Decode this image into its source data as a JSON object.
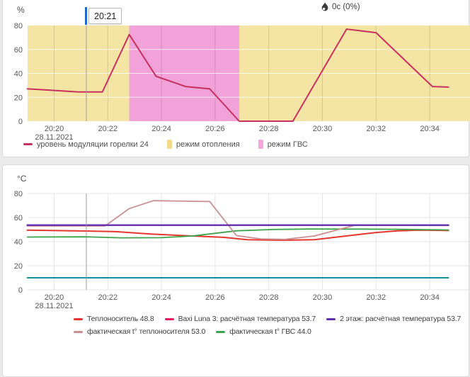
{
  "charts_meta": {
    "top_unit": "%",
    "bottom_unit": "°C",
    "burner_badge_text": "0с (0%)",
    "cursor_time": "20:21",
    "date_label": "28.11.2021"
  },
  "chart_data": [
    {
      "id": "top",
      "type": "line",
      "title": "",
      "unit": "%",
      "badge_text": "0с (0%)",
      "ylim": [
        0,
        80
      ],
      "yticks": [
        0,
        20,
        40,
        60,
        80
      ],
      "x_axis_note": "time 28.11.2021, minutes after 20:00",
      "xticks": [
        {
          "m": 20,
          "label": "20:20",
          "sub": "28.11.2021"
        },
        {
          "m": 22,
          "label": "20:22"
        },
        {
          "m": 24,
          "label": "20:24"
        },
        {
          "m": 26,
          "label": "20:26"
        },
        {
          "m": 28,
          "label": "20:28"
        },
        {
          "m": 30,
          "label": "20:30"
        },
        {
          "m": 32,
          "label": "20:32"
        },
        {
          "m": 34,
          "label": "20:34"
        }
      ],
      "bands": [
        {
          "label": "режим отопления",
          "color": "#f4e5a4",
          "from": 18.9,
          "to": 35.6
        },
        {
          "label": "режим ГВС",
          "color": "#f0a2d9",
          "from": 22.8,
          "to": 26.9
        }
      ],
      "cursor_m": 21.2,
      "cursor": {
        "label": "20:21"
      },
      "series": [
        {
          "sid": "modulation",
          "name": "уровень модуляции горелки 24",
          "color": "#c8315f",
          "width": 2,
          "points": [
            [
              19.0,
              27
            ],
            [
              19.8,
              26
            ],
            [
              20.9,
              24.5
            ],
            [
              21.8,
              24.5
            ],
            [
              22.8,
              72.5
            ],
            [
              23.8,
              37.5
            ],
            [
              24.9,
              29
            ],
            [
              25.8,
              27
            ],
            [
              26.9,
              0
            ],
            [
              28.9,
              0
            ],
            [
              30.9,
              77
            ],
            [
              32.0,
              74
            ],
            [
              34.1,
              29
            ],
            [
              34.7,
              28.5
            ]
          ]
        }
      ],
      "legend_rows": [
        [
          {
            "swatch": "line",
            "color": "#c8315f",
            "label": "уровень модуляции горелки 24"
          },
          {
            "swatch": "box",
            "color": "#f0db8d",
            "label": "режим отопления"
          },
          {
            "swatch": "box",
            "color": "#f2a6da",
            "label": "режим ГВС"
          }
        ]
      ]
    },
    {
      "id": "bottom",
      "type": "line",
      "title": "",
      "unit": "°C",
      "ylim": [
        0,
        80
      ],
      "yticks": [
        0,
        20,
        40,
        60,
        80
      ],
      "x_axis_note": "time 28.11.2021, minutes after 20:00",
      "xticks": [
        {
          "m": 20,
          "label": "20:20",
          "sub": "28.11.2021"
        },
        {
          "m": 22,
          "label": "20:22"
        },
        {
          "m": 24,
          "label": "20:24"
        },
        {
          "m": 26,
          "label": "20:26"
        },
        {
          "m": 28,
          "label": "20:28"
        },
        {
          "m": 30,
          "label": "20:30"
        },
        {
          "m": 32,
          "label": "20:32"
        },
        {
          "m": 34,
          "label": "20:34"
        }
      ],
      "bands": [],
      "cursor_m": 21.2,
      "series": [
        {
          "sid": "baxi-calc",
          "name": "Baxi Luna 3: расчётная температура 53.7",
          "color": "#e8175d",
          "width": 2,
          "points": [
            [
              19.0,
              53.7
            ],
            [
              34.7,
              53.7
            ]
          ]
        },
        {
          "sid": "aux-teal",
          "name": "",
          "color": "#128fa0",
          "width": 2,
          "points": [
            [
              19.0,
              10
            ],
            [
              34.7,
              10
            ]
          ]
        },
        {
          "sid": "carrier",
          "name": "Теплоноситель 48.8",
          "color": "#e5372e",
          "width": 2,
          "points": [
            [
              19.0,
              49.5
            ],
            [
              21.2,
              48.8
            ],
            [
              22.3,
              48.3
            ],
            [
              23.6,
              46.3
            ],
            [
              25.0,
              44.8
            ],
            [
              26.3,
              43.6
            ],
            [
              27.2,
              41.6
            ],
            [
              28.5,
              41.2
            ],
            [
              29.7,
              41.6
            ],
            [
              31.0,
              45.0
            ],
            [
              32.0,
              47.6
            ],
            [
              32.8,
              49.0
            ],
            [
              33.6,
              49.5
            ],
            [
              34.7,
              49.3
            ]
          ]
        },
        {
          "sid": "dhw-actual",
          "name": "фактическая t° ГВС 44.0",
          "color": "#3ea44b",
          "width": 1.8,
          "points": [
            [
              19.0,
              43.8
            ],
            [
              21.2,
              44.0
            ],
            [
              22.5,
              43.2
            ],
            [
              24.0,
              43.3
            ],
            [
              25.2,
              44.8
            ],
            [
              26.8,
              49.0
            ],
            [
              28.2,
              50.1
            ],
            [
              29.5,
              50.5
            ],
            [
              31.5,
              50.4
            ],
            [
              33.0,
              50.2
            ],
            [
              34.7,
              49.7
            ]
          ]
        },
        {
          "sid": "carrier-actual",
          "name": "фактическая t° теплоносителя 53.0",
          "color": "#cb8f8f",
          "width": 1.8,
          "points": [
            [
              19.0,
              53.0
            ],
            [
              21.9,
              53.0
            ],
            [
              22.8,
              67.5
            ],
            [
              23.7,
              74.0
            ],
            [
              25.8,
              73.3
            ],
            [
              26.8,
              45.0
            ],
            [
              27.7,
              42.3
            ],
            [
              28.6,
              41.9
            ],
            [
              29.7,
              44.7
            ],
            [
              30.6,
              50.0
            ],
            [
              31.2,
              53.5
            ],
            [
              34.7,
              53.4
            ]
          ]
        },
        {
          "sid": "floor2-calc",
          "name": "2 этаж: расчётная температура 53.7",
          "color": "#6330b0",
          "width": 2.4,
          "points": [
            [
              19.0,
              53.7
            ],
            [
              34.7,
              53.7
            ]
          ]
        }
      ],
      "legend_rows": [
        [
          {
            "swatch": "line",
            "color": "#e5372e",
            "label": "Теплоноситель 48.8"
          },
          {
            "swatch": "line",
            "color": "#e8175d",
            "label": "Baxi Luna 3: расчётная температура 53.7"
          },
          {
            "swatch": "line",
            "color": "#6330b0",
            "label": "2 этаж: расчётная температура 53.7"
          }
        ],
        [
          {
            "swatch": "line",
            "color": "#cb8f8f",
            "label": "фактическая t° теплоносителя 53.0"
          },
          {
            "swatch": "line",
            "color": "#3ea44b",
            "label": "фактическая t° ГВС 44.0"
          }
        ]
      ]
    }
  ]
}
